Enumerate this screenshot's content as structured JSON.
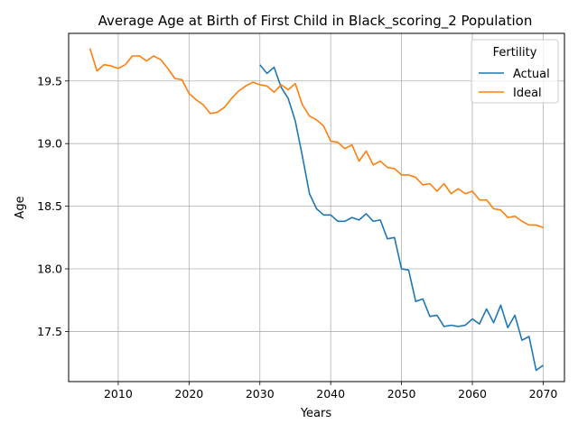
{
  "chart_data": {
    "type": "line",
    "title": "Average Age at Birth of First Child in Black_scoring_2 Population",
    "xlabel": "Years",
    "ylabel": "Age",
    "xlim": [
      2003,
      2073
    ],
    "ylim": [
      17.1,
      19.88
    ],
    "xticks": [
      2010,
      2020,
      2030,
      2040,
      2050,
      2060,
      2070
    ],
    "yticks": [
      17.5,
      18.0,
      18.5,
      19.0,
      19.5
    ],
    "ytick_labels": [
      "17.5",
      "18.0",
      "18.5",
      "19.0",
      "19.5"
    ],
    "grid": true,
    "legend": {
      "title": "Fertility",
      "position": "top-right"
    },
    "series": [
      {
        "name": "Actual",
        "color": "#1f77b4",
        "x": [
          2030,
          2031,
          2032,
          2033,
          2034,
          2035,
          2036,
          2037,
          2038,
          2039,
          2040,
          2041,
          2042,
          2043,
          2044,
          2045,
          2046,
          2047,
          2048,
          2049,
          2050,
          2051,
          2052,
          2053,
          2054,
          2055,
          2056,
          2057,
          2058,
          2059,
          2060,
          2061,
          2062,
          2063,
          2064,
          2065,
          2066,
          2067,
          2068,
          2069,
          2070
        ],
        "y": [
          19.63,
          19.56,
          19.61,
          19.45,
          19.36,
          19.18,
          18.9,
          18.6,
          18.48,
          18.43,
          18.43,
          18.38,
          18.38,
          18.41,
          18.39,
          18.44,
          18.38,
          18.39,
          18.24,
          18.25,
          18.0,
          17.99,
          17.74,
          17.76,
          17.62,
          17.63,
          17.54,
          17.55,
          17.54,
          17.55,
          17.6,
          17.56,
          17.68,
          17.57,
          17.71,
          17.53,
          17.63,
          17.43,
          17.46,
          17.19,
          17.23
        ]
      },
      {
        "name": "Ideal",
        "color": "#ff7f0e",
        "x": [
          2006,
          2007,
          2008,
          2009,
          2010,
          2011,
          2012,
          2013,
          2014,
          2015,
          2016,
          2017,
          2018,
          2019,
          2020,
          2021,
          2022,
          2023,
          2024,
          2025,
          2026,
          2027,
          2028,
          2029,
          2030,
          2031,
          2032,
          2033,
          2034,
          2035,
          2036,
          2037,
          2038,
          2039,
          2040,
          2041,
          2042,
          2043,
          2044,
          2045,
          2046,
          2047,
          2048,
          2049,
          2050,
          2051,
          2052,
          2053,
          2054,
          2055,
          2056,
          2057,
          2058,
          2059,
          2060,
          2061,
          2062,
          2063,
          2064,
          2065,
          2066,
          2067,
          2068,
          2069,
          2070
        ],
        "y": [
          19.76,
          19.58,
          19.63,
          19.62,
          19.6,
          19.63,
          19.7,
          19.7,
          19.66,
          19.7,
          19.67,
          19.6,
          19.52,
          19.51,
          19.4,
          19.35,
          19.31,
          19.24,
          19.25,
          19.29,
          19.36,
          19.42,
          19.46,
          19.49,
          19.47,
          19.46,
          19.41,
          19.47,
          19.43,
          19.48,
          19.31,
          19.22,
          19.19,
          19.14,
          19.02,
          19.01,
          18.96,
          18.99,
          18.86,
          18.94,
          18.83,
          18.86,
          18.81,
          18.8,
          18.75,
          18.75,
          18.73,
          18.67,
          18.68,
          18.62,
          18.68,
          18.6,
          18.64,
          18.6,
          18.62,
          18.55,
          18.55,
          18.48,
          18.47,
          18.41,
          18.42,
          18.38,
          18.35,
          18.35,
          18.33
        ]
      }
    ]
  }
}
